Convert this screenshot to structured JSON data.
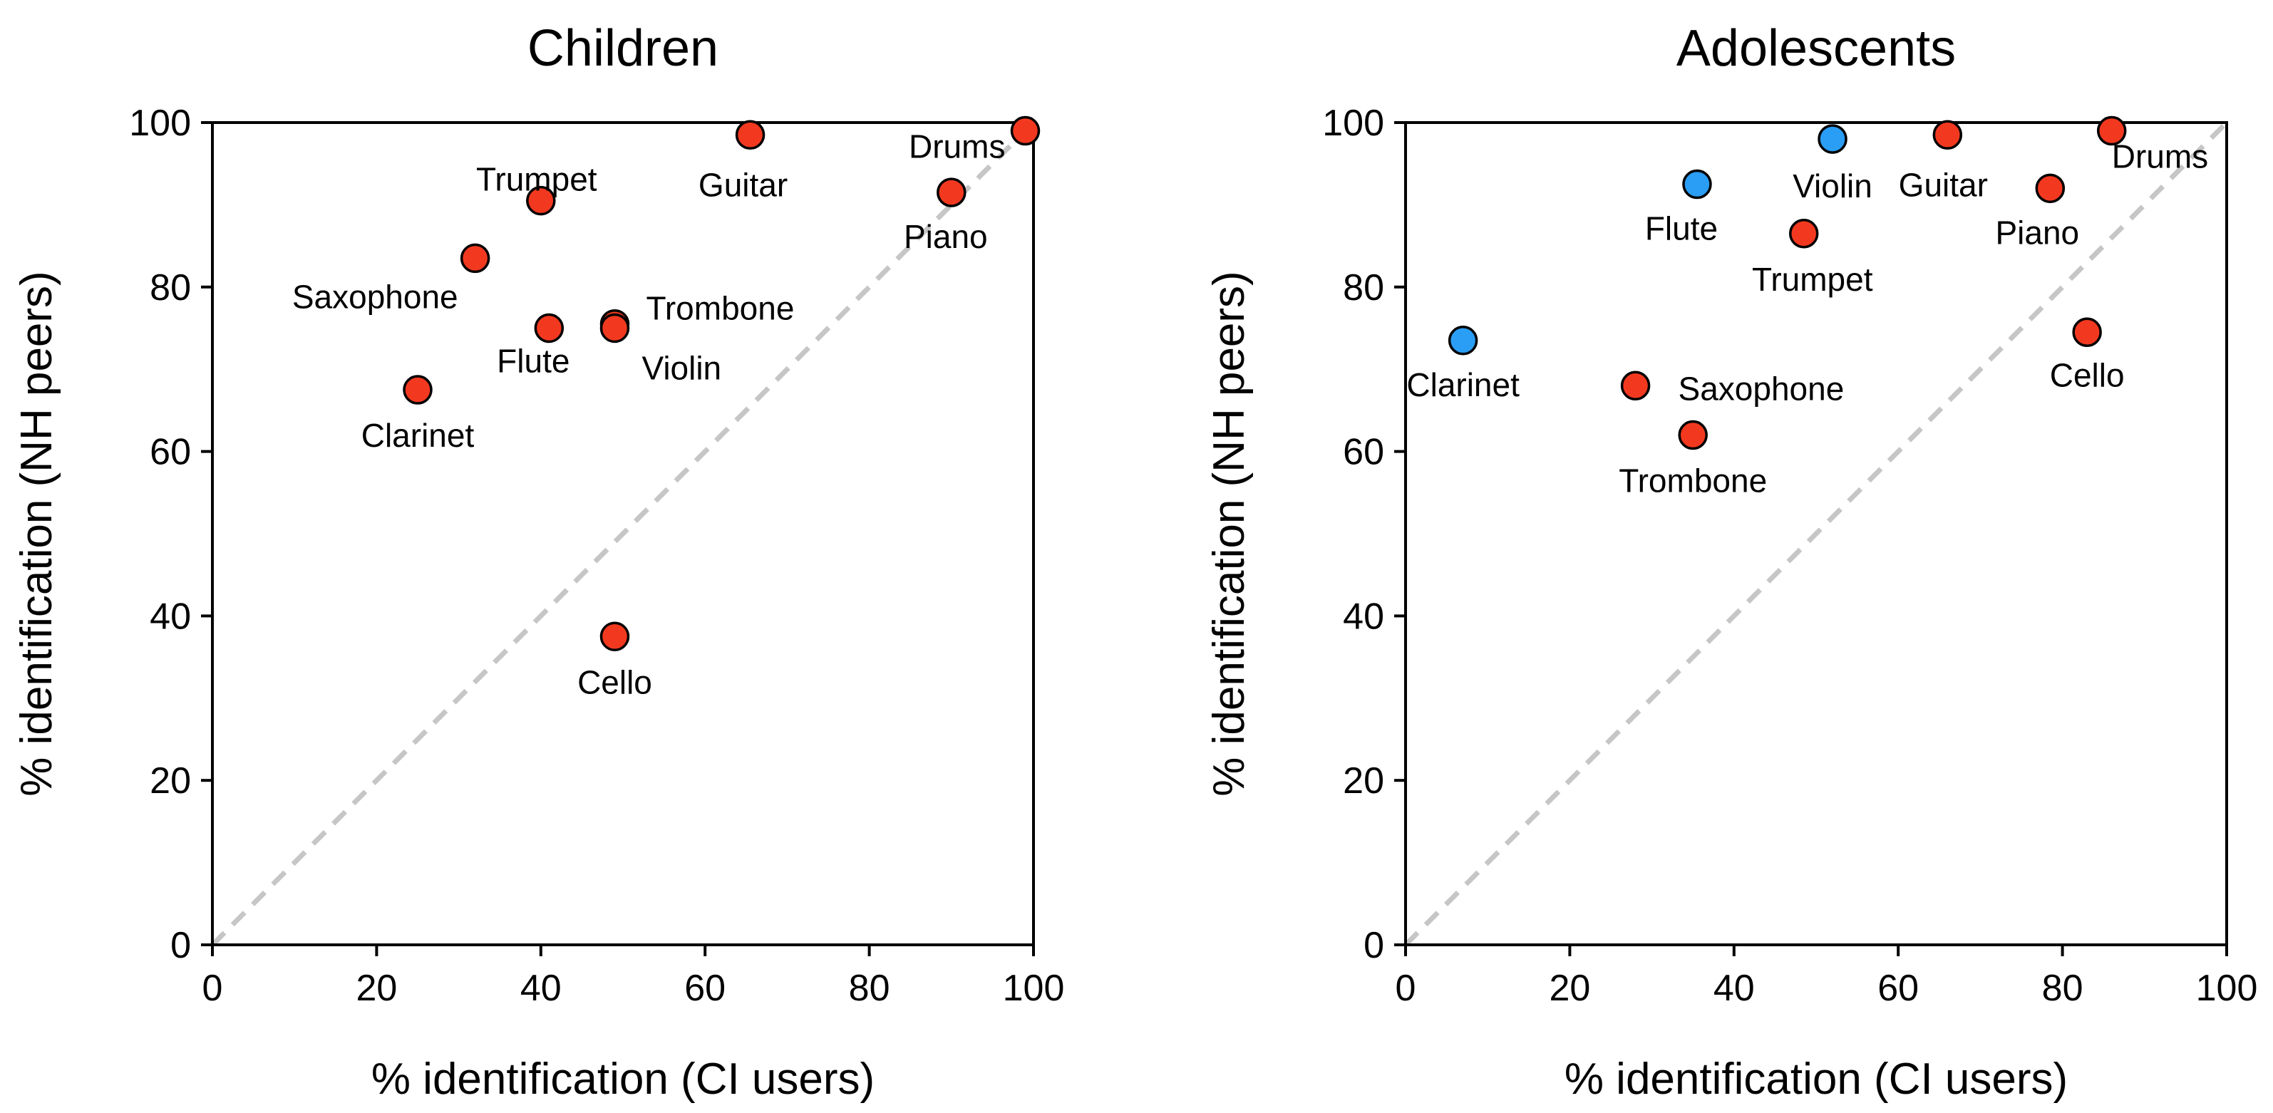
{
  "chart_data": [
    {
      "type": "scatter",
      "title": "Children",
      "xlabel": "% identification (CI users)",
      "ylabel": "% identification (NH peers)",
      "xlim": [
        0,
        100
      ],
      "ylim": [
        0,
        100
      ],
      "xticks": [
        0,
        20,
        40,
        60,
        80,
        100
      ],
      "yticks": [
        0,
        20,
        40,
        60,
        80,
        100
      ],
      "grid": false,
      "reference_line": "identity (y = x), dashed grey",
      "colors": {
        "red": "#f2391f",
        "blue": "#2a9df4"
      },
      "points": [
        {
          "name": "Trumpet",
          "x": 40,
          "y": 90.5,
          "color": "red",
          "label_pos": "above-left"
        },
        {
          "name": "Guitar",
          "x": 65.5,
          "y": 98.5,
          "color": "red",
          "label_pos": "below-left"
        },
        {
          "name": "Drums",
          "x": 99,
          "y": 99,
          "color": "red",
          "label_pos": "left"
        },
        {
          "name": "Piano",
          "x": 90,
          "y": 91.5,
          "color": "red",
          "label_pos": "below-left"
        },
        {
          "name": "Saxophone",
          "x": 32,
          "y": 83.5,
          "color": "red",
          "label_pos": "below-left"
        },
        {
          "name": "Trombone",
          "x": 49,
          "y": 75.5,
          "color": "red",
          "label_pos": "upper-right"
        },
        {
          "name": "Flute",
          "x": 41,
          "y": 75,
          "color": "red",
          "label_pos": "below-left"
        },
        {
          "name": "Violin",
          "x": 49,
          "y": 75,
          "color": "red",
          "label_pos": "below-right"
        },
        {
          "name": "Clarinet",
          "x": 25,
          "y": 67.5,
          "color": "red",
          "label_pos": "below"
        },
        {
          "name": "Cello",
          "x": 49,
          "y": 37.5,
          "color": "red",
          "label_pos": "below"
        }
      ]
    },
    {
      "type": "scatter",
      "title": "Adolescents",
      "xlabel": "% identification (CI users)",
      "ylabel": "% identification (NH peers)",
      "xlim": [
        0,
        100
      ],
      "ylim": [
        0,
        100
      ],
      "xticks": [
        0,
        20,
        40,
        60,
        80,
        100
      ],
      "yticks": [
        0,
        20,
        40,
        60,
        80,
        100
      ],
      "grid": false,
      "reference_line": "identity (y = x), dashed grey",
      "colors": {
        "red": "#f2391f",
        "blue": "#2a9df4"
      },
      "points": [
        {
          "name": "Violin",
          "x": 52,
          "y": 98,
          "color": "blue",
          "label_pos": "below"
        },
        {
          "name": "Guitar",
          "x": 66,
          "y": 98.5,
          "color": "red",
          "label_pos": "below-left"
        },
        {
          "name": "Drums",
          "x": 86,
          "y": 99,
          "color": "red",
          "label_pos": "below-right"
        },
        {
          "name": "Flute",
          "x": 35.5,
          "y": 92.5,
          "color": "blue",
          "label_pos": "below-left"
        },
        {
          "name": "Piano",
          "x": 78.5,
          "y": 92,
          "color": "red",
          "label_pos": "below"
        },
        {
          "name": "Trumpet",
          "x": 48.5,
          "y": 86.5,
          "color": "red",
          "label_pos": "below"
        },
        {
          "name": "Cello",
          "x": 83,
          "y": 74.5,
          "color": "red",
          "label_pos": "below"
        },
        {
          "name": "Clarinet",
          "x": 7,
          "y": 73.5,
          "color": "blue",
          "label_pos": "below"
        },
        {
          "name": "Saxophone",
          "x": 28,
          "y": 68,
          "color": "red",
          "label_pos": "right"
        },
        {
          "name": "Trombone",
          "x": 35,
          "y": 62,
          "color": "red",
          "label_pos": "below"
        }
      ]
    }
  ]
}
